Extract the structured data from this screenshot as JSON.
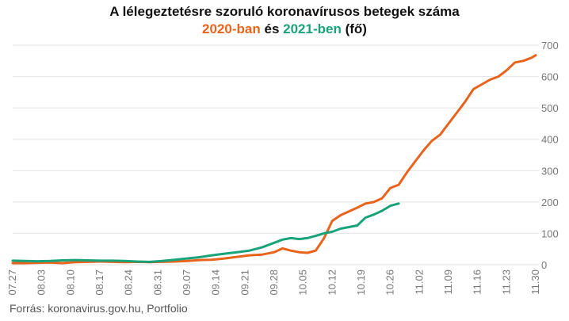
{
  "chart_data": {
    "type": "line",
    "title_line1": "A lélegeztetésre szoruló koronavírusos betegek száma",
    "title_line2": {
      "part_2020": "2020-ban",
      "connector": "és",
      "part_2021": "2021-ben",
      "unit": "(fő)"
    },
    "source": "Forrás: koronavirus.gov.hu, Portfolio",
    "ylim": [
      0,
      700
    ],
    "y_ticks": [
      "0",
      "100",
      "200",
      "300",
      "400",
      "500",
      "600",
      "700"
    ],
    "y_axis_position": "right",
    "grid": "horizontal",
    "x_ticks": [
      "07.27",
      "08.03",
      "08.10",
      "08.17",
      "08.24",
      "08.31",
      "09.07",
      "09.14",
      "09.21",
      "09.28",
      "10.05",
      "10.12",
      "10.19",
      "10.26",
      "11.02",
      "11.09",
      "11.16",
      "11.23",
      "11.30"
    ],
    "colors": {
      "series_2020": "#e8631c",
      "series_2021": "#1aa37a",
      "grid": "#e2e2e2",
      "axis_text": "#777777"
    },
    "series": [
      {
        "name": "2020",
        "x": [
          "07.27",
          "07.30",
          "08.02",
          "08.05",
          "08.08",
          "08.11",
          "08.14",
          "08.17",
          "08.20",
          "08.23",
          "08.26",
          "08.29",
          "09.01",
          "09.04",
          "09.07",
          "09.10",
          "09.13",
          "09.16",
          "09.19",
          "09.22",
          "09.25",
          "09.28",
          "09.30",
          "10.02",
          "10.04",
          "10.06",
          "10.08",
          "10.10",
          "10.12",
          "10.14",
          "10.16",
          "10.18",
          "10.20",
          "10.22",
          "10.24",
          "10.26",
          "10.28",
          "10.30",
          "11.01",
          "11.03",
          "11.05",
          "11.07",
          "11.09",
          "11.11",
          "11.13",
          "11.15",
          "11.17",
          "11.19",
          "11.21",
          "11.23",
          "11.25",
          "11.27",
          "11.29",
          "11.30"
        ],
        "values": [
          5,
          5,
          6,
          7,
          5,
          8,
          9,
          10,
          9,
          8,
          9,
          8,
          9,
          10,
          12,
          15,
          16,
          20,
          25,
          30,
          32,
          40,
          52,
          45,
          40,
          38,
          45,
          85,
          140,
          158,
          170,
          182,
          195,
          200,
          212,
          245,
          255,
          295,
          330,
          365,
          395,
          415,
          450,
          485,
          520,
          560,
          575,
          590,
          600,
          620,
          645,
          650,
          660,
          668
        ]
      },
      {
        "name": "2021",
        "x": [
          "07.27",
          "07.30",
          "08.02",
          "08.05",
          "08.08",
          "08.11",
          "08.14",
          "08.17",
          "08.20",
          "08.23",
          "08.26",
          "08.29",
          "09.01",
          "09.04",
          "09.07",
          "09.10",
          "09.13",
          "09.16",
          "09.19",
          "09.22",
          "09.25",
          "09.28",
          "09.30",
          "10.02",
          "10.04",
          "10.06",
          "10.08",
          "10.10",
          "10.12",
          "10.14",
          "10.16",
          "10.18",
          "10.20",
          "10.22",
          "10.24",
          "10.26",
          "10.28"
        ],
        "values": [
          13,
          12,
          11,
          12,
          14,
          15,
          14,
          13,
          13,
          12,
          10,
          9,
          12,
          16,
          20,
          24,
          30,
          35,
          40,
          45,
          55,
          70,
          80,
          85,
          82,
          85,
          92,
          100,
          105,
          115,
          120,
          125,
          150,
          160,
          172,
          188,
          195
        ]
      }
    ]
  }
}
